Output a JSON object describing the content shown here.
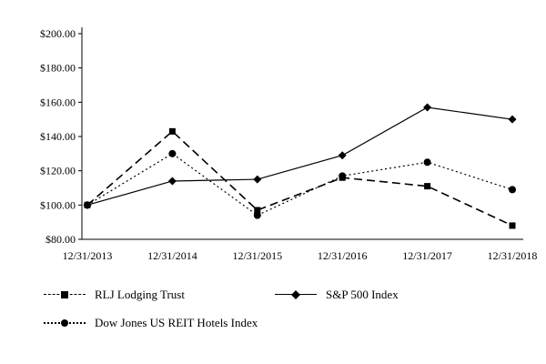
{
  "chart_data": {
    "type": "line",
    "title": "",
    "xlabel": "",
    "ylabel": "",
    "x": [
      "12/31/2013",
      "12/31/2014",
      "12/31/2015",
      "12/31/2016",
      "12/31/2017",
      "12/31/2018"
    ],
    "series": [
      {
        "name": "RLJ Lodging Trust",
        "values": [
          100,
          143,
          97,
          116,
          111,
          88
        ],
        "line_style": "dashed",
        "marker": "square",
        "color": "#000000"
      },
      {
        "name": "S&P 500 Index",
        "values": [
          100,
          114,
          115,
          129,
          157,
          150
        ],
        "line_style": "solid",
        "marker": "diamond",
        "color": "#000000"
      },
      {
        "name": "Dow Jones US REIT Hotels Index",
        "values": [
          100,
          130,
          94,
          117,
          125,
          109
        ],
        "line_style": "dotted",
        "marker": "circle",
        "color": "#000000"
      }
    ],
    "ylim": [
      80,
      200
    ],
    "ytick_step": 20,
    "ytick_labels": [
      "$80.00",
      "$100.00",
      "$120.00",
      "$140.00",
      "$160.00",
      "$180.00",
      "$200.00"
    ],
    "grid": false,
    "legend_position": "bottom",
    "axis_color": "#000000"
  }
}
